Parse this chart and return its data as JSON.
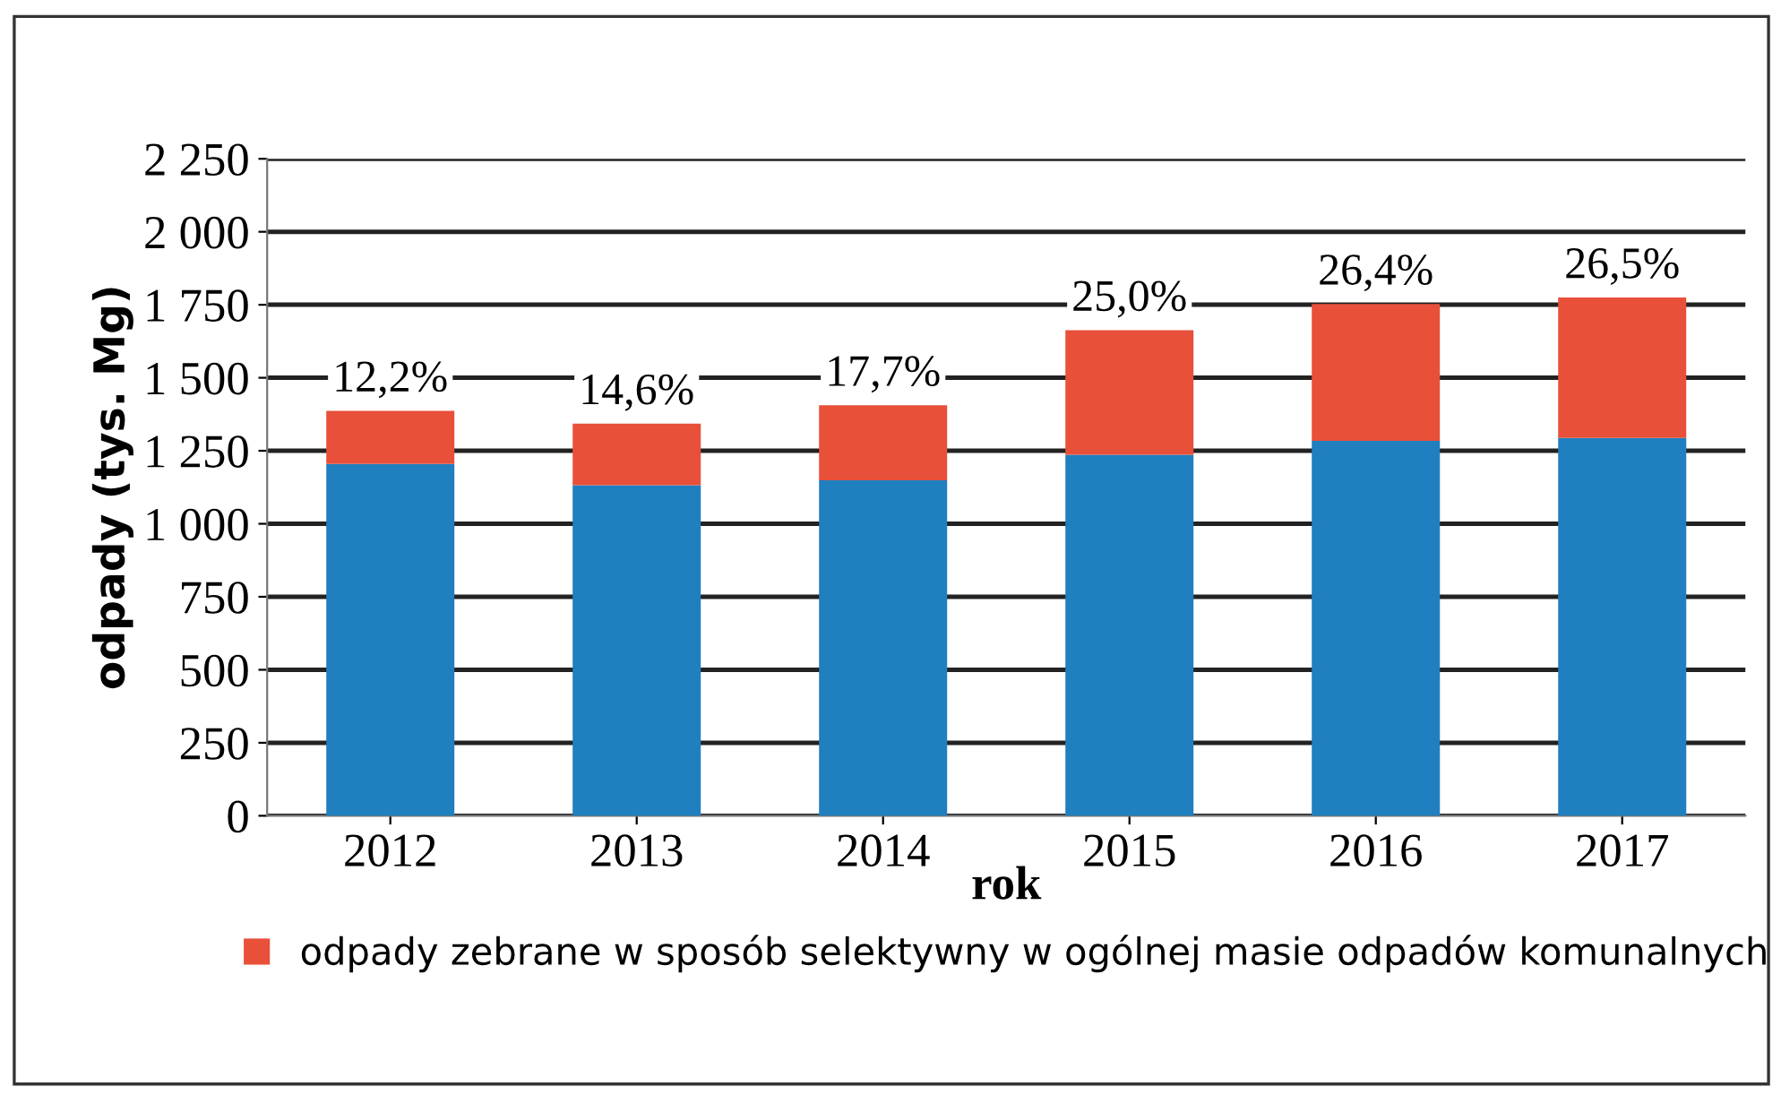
{
  "chart_data": {
    "type": "bar",
    "stacked": true,
    "xlabel": "rok",
    "ylabel": "odpady (tys. Mg)",
    "categories": [
      "2012",
      "2013",
      "2014",
      "2015",
      "2016",
      "2017"
    ],
    "series": [
      {
        "color": "#1f7fbf",
        "values": [
          1205,
          1132,
          1149,
          1236,
          1284,
          1294
        ]
      },
      {
        "name": "odpady zebrane w sposób selektywny w ogólnej masie odpadów komunalnych",
        "color": "#e8503a",
        "values": [
          182,
          211,
          257,
          427,
          469,
          481
        ]
      }
    ],
    "ylim": [
      0,
      2250
    ],
    "yticks": [
      0,
      250,
      500,
      750,
      {
        "value": 1000,
        "label": "1 000"
      },
      {
        "value": 1250,
        "label": "1 250"
      },
      {
        "value": 1500,
        "label": "1 500"
      },
      {
        "value": 1750,
        "label": "1 750"
      },
      {
        "value": 2000,
        "label": "2 000"
      },
      {
        "value": 2250,
        "label": "2 250"
      }
    ],
    "annotations": [
      {
        "text": "12,2%",
        "x": "2012",
        "y": 1387
      },
      {
        "text": "14,6%",
        "x": "2013",
        "y": 1343
      },
      {
        "text": "17,7%",
        "x": "2014",
        "y": 1406
      },
      {
        "text": "25,0%",
        "x": "2015",
        "y": 1663
      },
      {
        "text": "26,4%",
        "x": "2016",
        "y": 1753
      },
      {
        "text": "26,5%",
        "x": "2017",
        "y": 1775
      }
    ],
    "grid": "y",
    "legend": "bottom"
  }
}
